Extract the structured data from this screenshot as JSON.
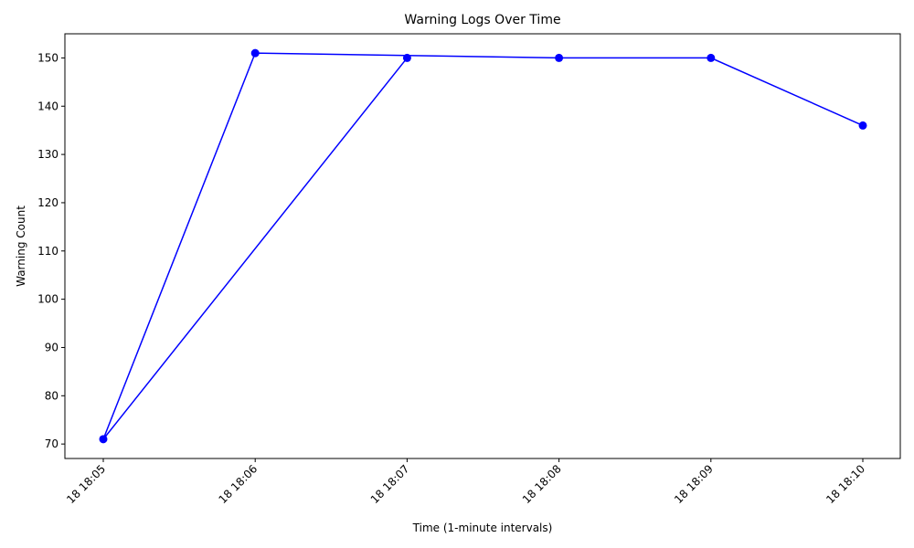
{
  "chart_data": {
    "type": "line",
    "title": "Warning Logs Over Time",
    "xlabel": "Time (1-minute intervals)",
    "ylabel": "Warning Count",
    "x_ticks": [
      "18 18:05",
      "18 18:06",
      "18 18:07",
      "18 18:08",
      "18 18:09",
      "18 18:10"
    ],
    "y_ticks": [
      70,
      80,
      90,
      100,
      110,
      120,
      130,
      140,
      150
    ],
    "ylim": [
      67,
      155
    ],
    "xlim": [
      "18 18:05",
      "18 18:10"
    ],
    "grid": false,
    "series": [
      {
        "color": "#0000ff",
        "marker": "circle",
        "points": [
          {
            "x": "18 18:07",
            "y": 150
          },
          {
            "x": "18 18:05",
            "y": 71
          },
          {
            "x": "18 18:06",
            "y": 151
          },
          {
            "x": "18 18:08",
            "y": 150
          },
          {
            "x": "18 18:09",
            "y": 150
          },
          {
            "x": "18 18:10",
            "y": 136
          }
        ]
      }
    ]
  }
}
